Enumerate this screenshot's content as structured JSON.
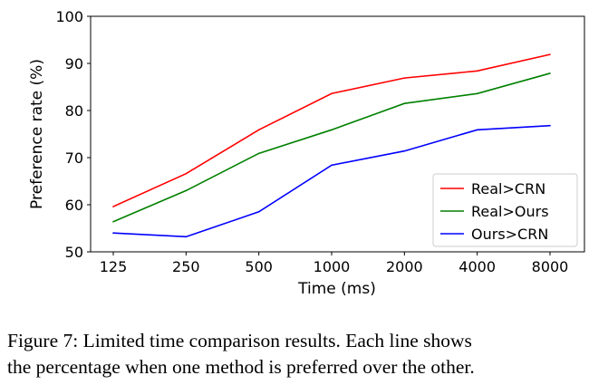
{
  "chart_data": {
    "type": "line",
    "title": "",
    "xlabel": "Time (ms)",
    "ylabel": "Preference rate (%)",
    "categories": [
      "125",
      "250",
      "500",
      "1000",
      "2000",
      "4000",
      "8000"
    ],
    "ylim": [
      50,
      100
    ],
    "yticks": [
      "50",
      "60",
      "70",
      "80",
      "90",
      "100"
    ],
    "grid": false,
    "legend_position": "bottom-right",
    "series": [
      {
        "name": "Real>CRN",
        "color": "#ff0000",
        "values": [
          59.6,
          66.6,
          75.9,
          83.6,
          86.9,
          88.4,
          91.9
        ]
      },
      {
        "name": "Real>Ours",
        "color": "#008000",
        "values": [
          56.4,
          63.0,
          70.9,
          75.9,
          81.5,
          83.6,
          87.9
        ]
      },
      {
        "name": "Ours>CRN",
        "color": "#0000ff",
        "values": [
          54.0,
          53.2,
          58.5,
          68.4,
          71.4,
          75.9,
          76.8
        ]
      }
    ]
  },
  "caption": {
    "line1": "Figure 7: Limited time comparison results. Each line shows",
    "line2": "the percentage when one method is preferred over the other."
  }
}
